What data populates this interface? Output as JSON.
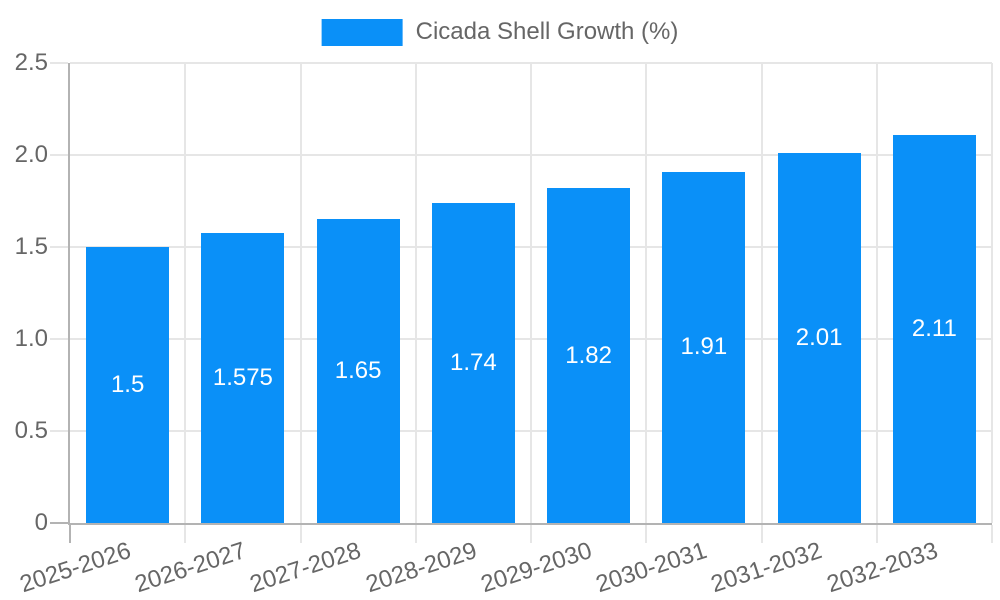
{
  "legend": {
    "label": "Cicada Shell Growth (%)"
  },
  "chart_data": {
    "type": "bar",
    "title": "",
    "series_name": "Cicada Shell Growth (%)",
    "categories": [
      "2025-2026",
      "2026-2027",
      "2027-2028",
      "2028-2029",
      "2029-2030",
      "2030-2031",
      "2031-2032",
      "2032-2033"
    ],
    "values": [
      1.5,
      1.575,
      1.65,
      1.74,
      1.82,
      1.91,
      2.01,
      2.11
    ],
    "value_labels": [
      "1.5",
      "1.575",
      "1.65",
      "1.74",
      "1.82",
      "1.91",
      "2.01",
      "2.11"
    ],
    "xlabel": "",
    "ylabel": "",
    "ylim": [
      0,
      2.5
    ],
    "yticks": [
      0,
      0.5,
      1,
      1.5,
      2,
      2.5
    ],
    "ytick_labels": [
      "0",
      "0.5",
      "1.0",
      "1.5",
      "2.0",
      "2.5"
    ],
    "grid": true,
    "legend_position": "top",
    "x_tick_rotation_deg": -18,
    "colors": {
      "bar": "#0a90f8",
      "grid": "#e6e6e6",
      "axis": "#b3b3b3",
      "tick_text": "#666666",
      "value_text": "#ffffff",
      "background": "#ffffff"
    }
  }
}
